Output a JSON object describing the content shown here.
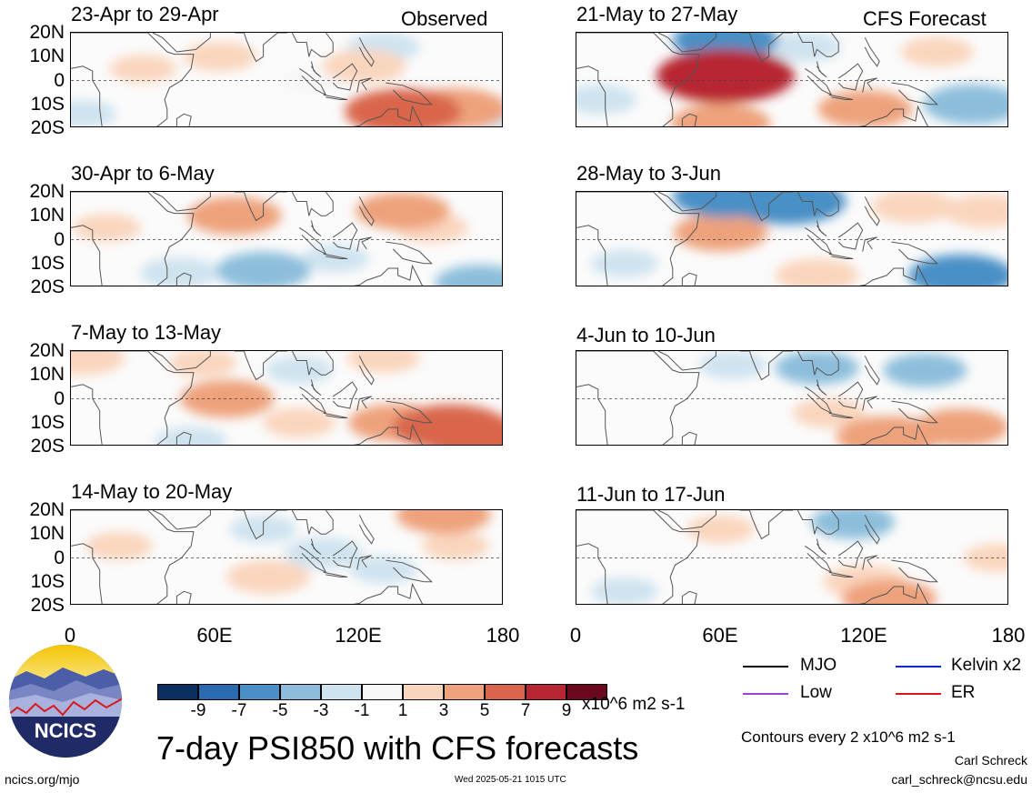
{
  "header": {
    "left_label": "Observed",
    "right_label": "CFS Forecast"
  },
  "panels_left": [
    {
      "title": "23-Apr to 29-Apr"
    },
    {
      "title": "30-Apr to 6-May"
    },
    {
      "title": "7-May to 13-May"
    },
    {
      "title": "14-May to 20-May"
    }
  ],
  "panels_right": [
    {
      "title": "21-May to 27-May"
    },
    {
      "title": "28-May to 3-Jun"
    },
    {
      "title": "4-Jun to 10-Jun"
    },
    {
      "title": "11-Jun to 17-Jun"
    }
  ],
  "axes": {
    "y_ticks": [
      "20N",
      "10N",
      "0",
      "10S",
      "20S"
    ],
    "x_ticks": [
      "0",
      "60E",
      "120E",
      "180"
    ]
  },
  "colorbar": {
    "tick_labels": [
      "-9",
      "-7",
      "-5",
      "-3",
      "-1",
      "1",
      "3",
      "5",
      "7",
      "9"
    ],
    "colors": [
      "#0b2f5e",
      "#2a6bb0",
      "#4a90c6",
      "#8cbedb",
      "#cfe3ef",
      "#f7f7f7",
      "#fad5bd",
      "#eea27c",
      "#d9664c",
      "#b72633",
      "#6b0a1e"
    ],
    "units": "x10^6 m2 s-1"
  },
  "legend": {
    "items": [
      {
        "label": "MJO",
        "color": "#000000"
      },
      {
        "label": "Kelvin x2",
        "color": "#0a25d8"
      },
      {
        "label": "Low",
        "color": "#9b3fd8"
      },
      {
        "label": "ER",
        "color": "#e0141e"
      }
    ]
  },
  "footer": {
    "title": "7-day PSI850 with CFS forecasts",
    "contours": "Contours every 2 x10^6 m2 s-1",
    "author": "Carl Schreck",
    "email": "carl_schreck@ncsu.edu",
    "url": "ncics.org/mjo",
    "timestamp": "Wed 2025-05-21 1015 UTC",
    "logo_text": "NCICS"
  },
  "chart_data": {
    "type": "heatmap",
    "variable": "PSI850 anomaly, 7-day",
    "units": "x10^6 m2 s-1",
    "lon_range": [
      0,
      180
    ],
    "lat_range": [
      -20,
      20
    ],
    "levels": [
      -9,
      -7,
      -5,
      -3,
      -1,
      1,
      3,
      5,
      7,
      9
    ],
    "panels": [
      {
        "title": "23-Apr to 29-Apr",
        "blobs": [
          {
            "lon": 62,
            "lat": 10,
            "value": 2
          },
          {
            "lon": 30,
            "lat": 5,
            "value": 1.5
          },
          {
            "lon": 160,
            "lat": -12,
            "value": 5
          },
          {
            "lon": 138,
            "lat": -13,
            "value": 6
          },
          {
            "lon": 122,
            "lat": 6,
            "value": 3
          },
          {
            "lon": 130,
            "lat": 14,
            "value": -2
          },
          {
            "lon": 175,
            "lat": -15,
            "value": -2
          },
          {
            "lon": 5,
            "lat": -14,
            "value": -1.5
          },
          {
            "lon": 100,
            "lat": 0,
            "value": 1
          }
        ]
      },
      {
        "title": "30-Apr to 6-May",
        "blobs": [
          {
            "lon": 68,
            "lat": 10,
            "value": 4
          },
          {
            "lon": 138,
            "lat": 12,
            "value": 4
          },
          {
            "lon": 150,
            "lat": 5,
            "value": 2
          },
          {
            "lon": 80,
            "lat": -13,
            "value": -4
          },
          {
            "lon": 170,
            "lat": -18,
            "value": -3.5
          },
          {
            "lon": 45,
            "lat": -14,
            "value": -2.5
          },
          {
            "lon": 110,
            "lat": -8,
            "value": -1.5
          },
          {
            "lon": 15,
            "lat": 5,
            "value": 1.5
          }
        ]
      },
      {
        "title": "7-May to 13-May",
        "blobs": [
          {
            "lon": 5,
            "lat": 17,
            "value": 3
          },
          {
            "lon": 65,
            "lat": 0,
            "value": 4
          },
          {
            "lon": 135,
            "lat": -10,
            "value": 4
          },
          {
            "lon": 158,
            "lat": -12,
            "value": 6
          },
          {
            "lon": 172,
            "lat": -17,
            "value": 6
          },
          {
            "lon": 95,
            "lat": -10,
            "value": 2
          },
          {
            "lon": 130,
            "lat": 17,
            "value": 2
          },
          {
            "lon": 55,
            "lat": 15,
            "value": 1.5
          },
          {
            "lon": 50,
            "lat": -18,
            "value": -2
          },
          {
            "lon": 95,
            "lat": 12,
            "value": -1.5
          }
        ]
      },
      {
        "title": "14-May to 20-May",
        "blobs": [
          {
            "lon": 155,
            "lat": 18,
            "value": 4
          },
          {
            "lon": 82,
            "lat": -8,
            "value": 3
          },
          {
            "lon": 20,
            "lat": 5,
            "value": 1.5
          },
          {
            "lon": 105,
            "lat": 2,
            "value": -2.5
          },
          {
            "lon": 80,
            "lat": 12,
            "value": -1.5
          },
          {
            "lon": 160,
            "lat": 5,
            "value": 1.5
          },
          {
            "lon": 130,
            "lat": -5,
            "value": -1.5
          }
        ]
      },
      {
        "title": "21-May to 27-May",
        "blobs": [
          {
            "lon": 60,
            "lat": 0,
            "value": 6
          },
          {
            "lon": 62,
            "lat": 2,
            "value": 8
          },
          {
            "lon": 62,
            "lat": 17,
            "value": -5
          },
          {
            "lon": 60,
            "lat": -18,
            "value": 4.5
          },
          {
            "lon": 120,
            "lat": -12,
            "value": 4
          },
          {
            "lon": 165,
            "lat": -10,
            "value": -4.5
          },
          {
            "lon": 95,
            "lat": 14,
            "value": -2
          },
          {
            "lon": 10,
            "lat": -8,
            "value": -2
          },
          {
            "lon": 150,
            "lat": 12,
            "value": 2
          }
        ]
      },
      {
        "title": "28-May to 3-Jun",
        "blobs": [
          {
            "lon": 88,
            "lat": 16,
            "value": -6
          },
          {
            "lon": 62,
            "lat": 18,
            "value": -5
          },
          {
            "lon": 160,
            "lat": -15,
            "value": -5
          },
          {
            "lon": 60,
            "lat": 3,
            "value": 4
          },
          {
            "lon": 100,
            "lat": -15,
            "value": 3
          },
          {
            "lon": 170,
            "lat": 12,
            "value": 3
          },
          {
            "lon": 140,
            "lat": 14,
            "value": 3
          },
          {
            "lon": 20,
            "lat": -10,
            "value": -1.5
          }
        ]
      },
      {
        "title": "4-Jun to 10-Jun",
        "blobs": [
          {
            "lon": 130,
            "lat": -16,
            "value": 5
          },
          {
            "lon": 160,
            "lat": -12,
            "value": 4
          },
          {
            "lon": 100,
            "lat": 13,
            "value": -3
          },
          {
            "lon": 145,
            "lat": 12,
            "value": -3
          },
          {
            "lon": 65,
            "lat": 14,
            "value": -1.5
          },
          {
            "lon": 105,
            "lat": -6,
            "value": 2
          }
        ]
      },
      {
        "title": "11-Jun to 17-Jun",
        "blobs": [
          {
            "lon": 115,
            "lat": 15,
            "value": -3
          },
          {
            "lon": 60,
            "lat": 12,
            "value": 1.5
          },
          {
            "lon": 120,
            "lat": -10,
            "value": 3
          },
          {
            "lon": 130,
            "lat": -17,
            "value": 4
          },
          {
            "lon": 175,
            "lat": 0,
            "value": 1.5
          },
          {
            "lon": 20,
            "lat": -14,
            "value": -1.5
          }
        ]
      }
    ]
  }
}
